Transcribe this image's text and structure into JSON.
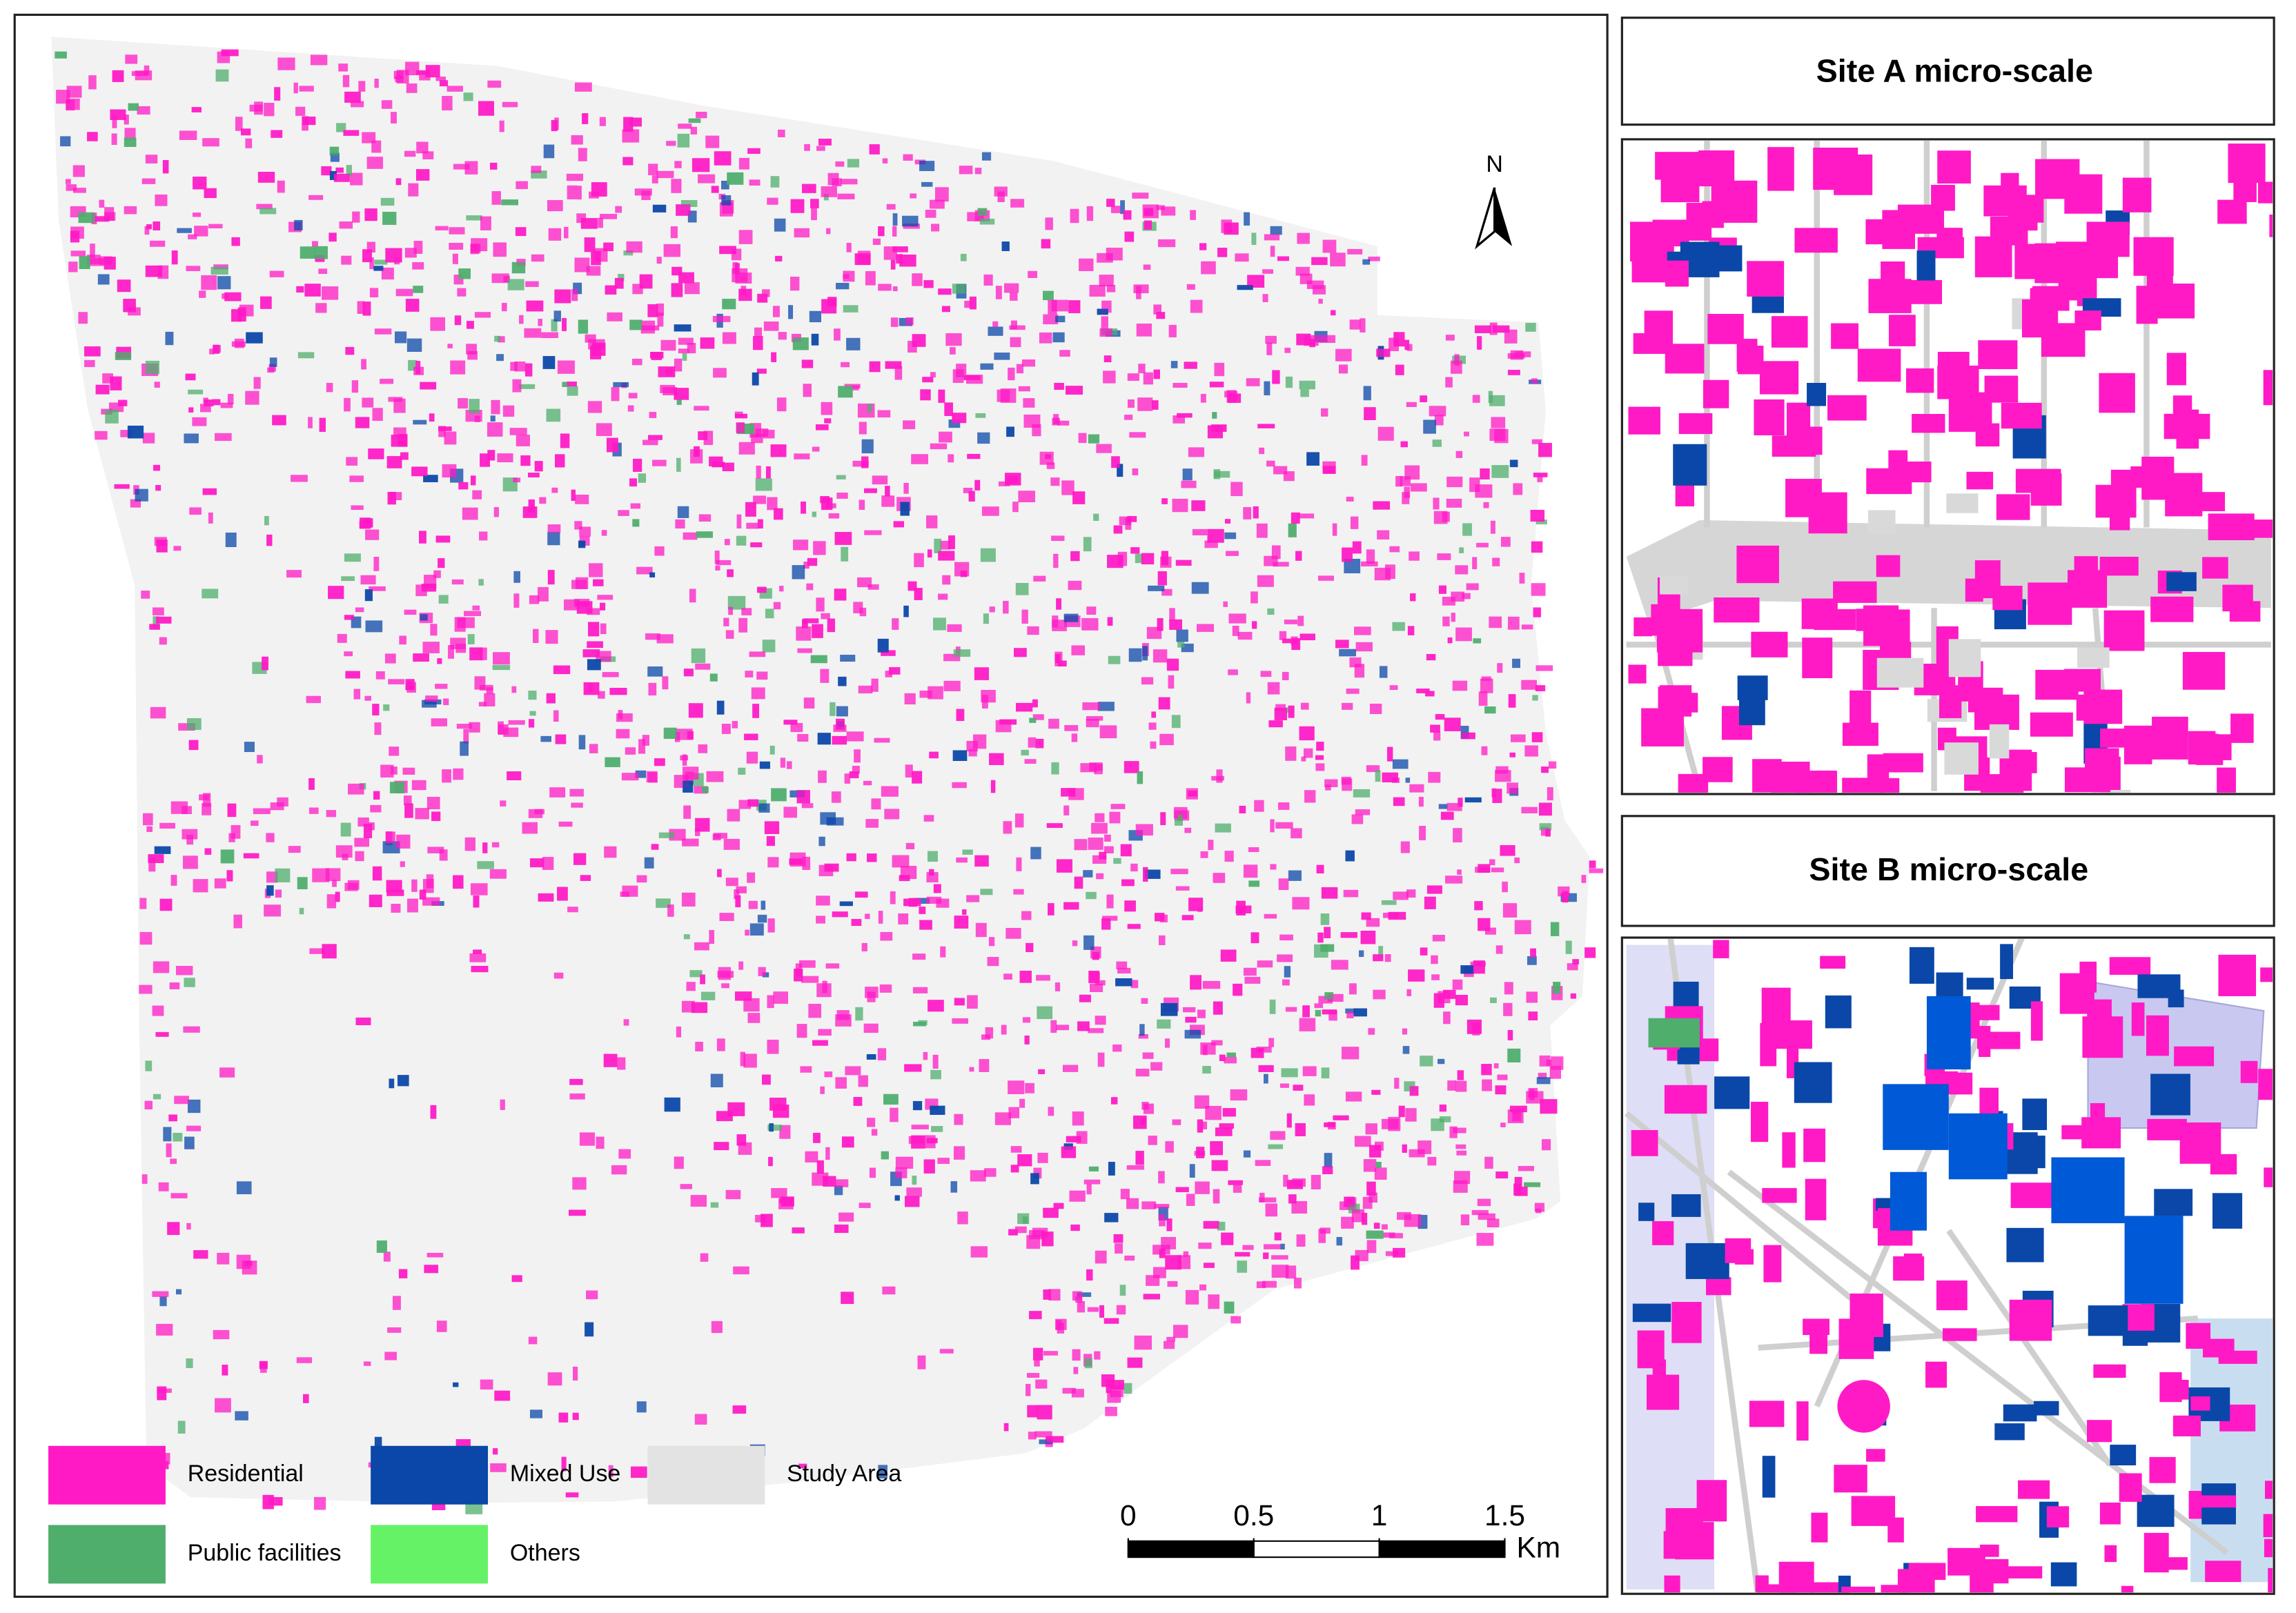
{
  "map": {
    "legend": [
      {
        "label": "Residential",
        "color": "#ff1ac6"
      },
      {
        "label": "Mixed Use",
        "color": "#0a47a8"
      },
      {
        "label": "Study Area",
        "color": "#e3e3e3"
      },
      {
        "label": "Public facilities",
        "color": "#4fae6c"
      },
      {
        "label": "Others",
        "color": "#66f266"
      }
    ],
    "north": "N",
    "scale_bar": {
      "ticks": [
        0,
        0.5,
        1,
        1.5
      ],
      "unit": "Km"
    }
  },
  "insets": [
    {
      "title": "Site A micro-scale"
    },
    {
      "title": "Site B micro-scale"
    }
  ]
}
